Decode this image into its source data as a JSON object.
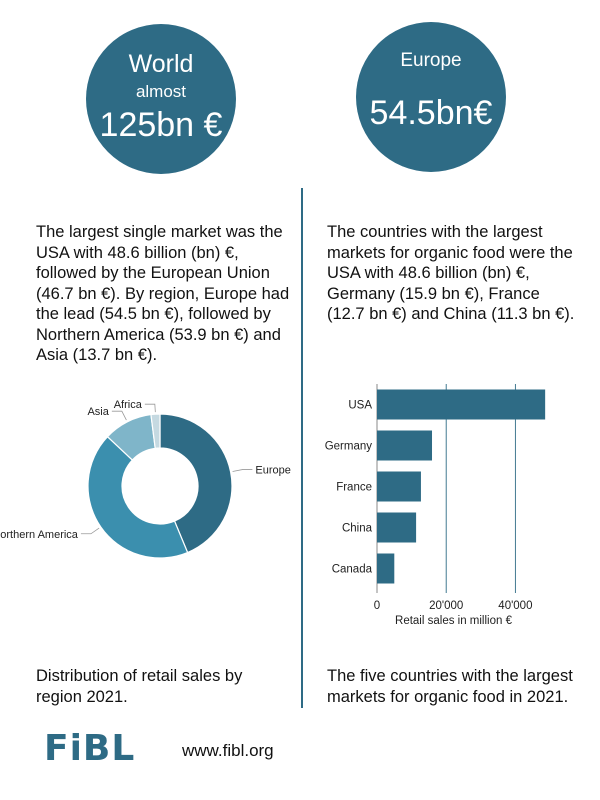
{
  "circles": {
    "world": {
      "line1": "World",
      "line2": "almost",
      "big": "125bn €"
    },
    "europe": {
      "line1": "Europe",
      "big": "54.5bn€"
    }
  },
  "left_text": "The largest single market was the USA with 48.6 billion (bn) €, followed by the European Union (46.7 bn €). By region, Europe had the lead (54.5 bn €), followed by Northern America (53.9 bn €) and Asia (13.7 bn €).",
  "right_text": "The countries with the largest markets for organic food were the USA with 48.6 billion (bn) €, Germany (15.9 bn €), France (12.7 bn €) and China (11.3 bn €).",
  "left_caption": "Distribution of retail sales by region 2021.",
  "right_caption": "The five countries with the largest markets for organic food in 2021.",
  "footer": {
    "logo": "FiBL",
    "url": "www.fibl.org"
  },
  "colors": {
    "accent": "#2e6b85",
    "pie_europe": "#2e6b85",
    "pie_na": "#3b8fae",
    "pie_asia": "#7fb5c9",
    "pie_africa": "#c5d9e1"
  },
  "chart_data": [
    {
      "type": "pie",
      "style": "donut",
      "categories": [
        "Europe",
        "Northern America",
        "Asia",
        "Africa"
      ],
      "values": [
        54.5,
        53.9,
        13.7,
        2.5
      ],
      "unit": "bn €"
    },
    {
      "type": "bar",
      "orientation": "horizontal",
      "categories": [
        "USA",
        "Germany",
        "France",
        "China",
        "Canada"
      ],
      "values": [
        48600,
        15900,
        12700,
        11300,
        5000
      ],
      "xlabel": "Retail sales in million €",
      "xticks": [
        "0",
        "20'000",
        "40'000"
      ],
      "xtick_values": [
        0,
        20000,
        40000
      ],
      "xlim": [
        0,
        50000
      ],
      "grid": true
    }
  ]
}
